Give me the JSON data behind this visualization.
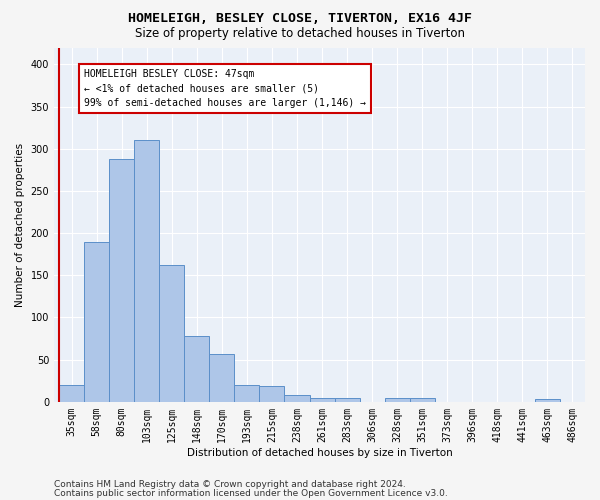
{
  "title": "HOMELEIGH, BESLEY CLOSE, TIVERTON, EX16 4JF",
  "subtitle": "Size of property relative to detached houses in Tiverton",
  "xlabel": "Distribution of detached houses by size in Tiverton",
  "ylabel": "Number of detached properties",
  "footer_line1": "Contains HM Land Registry data © Crown copyright and database right 2024.",
  "footer_line2": "Contains public sector information licensed under the Open Government Licence v3.0.",
  "bar_labels": [
    "35sqm",
    "58sqm",
    "80sqm",
    "103sqm",
    "125sqm",
    "148sqm",
    "170sqm",
    "193sqm",
    "215sqm",
    "238sqm",
    "261sqm",
    "283sqm",
    "306sqm",
    "328sqm",
    "351sqm",
    "373sqm",
    "396sqm",
    "418sqm",
    "441sqm",
    "463sqm",
    "486sqm"
  ],
  "bar_values": [
    20,
    190,
    288,
    310,
    162,
    78,
    57,
    20,
    19,
    8,
    5,
    5,
    0,
    5,
    4,
    0,
    0,
    0,
    0,
    3,
    0
  ],
  "bar_color": "#aec6e8",
  "bar_edge_color": "#5b8fc9",
  "ylim": [
    0,
    420
  ],
  "yticks": [
    0,
    50,
    100,
    150,
    200,
    250,
    300,
    350,
    400
  ],
  "annotation_text": "HOMELEIGH BESLEY CLOSE: 47sqm\n← <1% of detached houses are smaller (5)\n99% of semi-detached houses are larger (1,146) →",
  "annotation_box_color": "#ffffff",
  "annotation_box_edge_color": "#cc0000",
  "vline_color": "#cc0000",
  "bg_color": "#eaf0f8",
  "grid_color": "#ffffff",
  "title_fontsize": 9.5,
  "subtitle_fontsize": 8.5,
  "axis_label_fontsize": 7.5,
  "tick_fontsize": 7,
  "annotation_fontsize": 7,
  "footer_fontsize": 6.5
}
